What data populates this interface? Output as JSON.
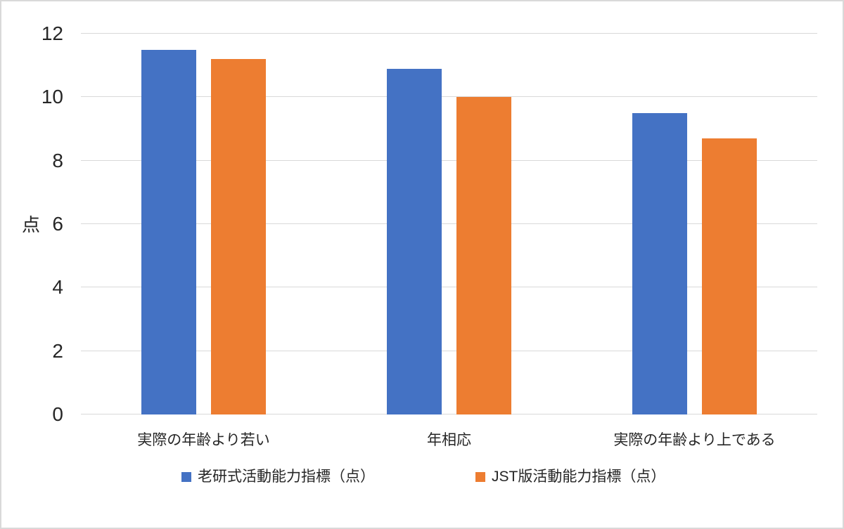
{
  "chart_data": {
    "type": "bar",
    "title": "",
    "categories": [
      "実際の年齢より若い",
      "年相応",
      "実際の年齢より上である"
    ],
    "series": [
      {
        "name": "老研式活動能力指標（点）",
        "color": "#4472C4",
        "values": [
          11.5,
          10.9,
          9.5
        ]
      },
      {
        "name": "JST版活動能力指標（点）",
        "color": "#ED7D31",
        "values": [
          11.2,
          10.0,
          8.7
        ]
      }
    ],
    "xlabel": "",
    "ylabel": "点",
    "ylim": [
      0,
      12
    ],
    "yticks": [
      0,
      2,
      4,
      6,
      8,
      10,
      12
    ],
    "grid": true,
    "legend_position": "bottom",
    "colors": {
      "background": "#FFFFFF",
      "gridline": "#D9D9D9",
      "text": "#262626",
      "frame_border": "#D9D9D9"
    }
  }
}
